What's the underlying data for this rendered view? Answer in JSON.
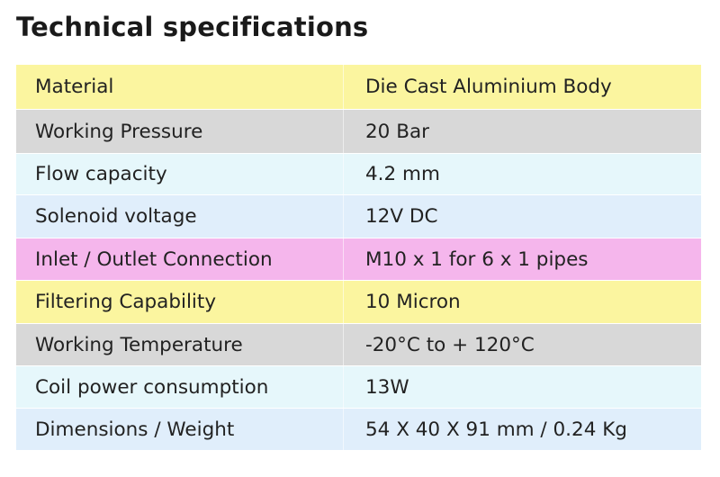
{
  "title": "Technical specifications",
  "colors": {
    "yellow": "#fbf59f",
    "gray": "#d8d8d8",
    "light_blue": "#e6f7fb",
    "pale_blue": "#e0eefb",
    "pink": "#f5b6ec"
  },
  "specs": [
    {
      "label": "Material",
      "value": "Die Cast Aluminium Body",
      "color": "#fbf59f"
    },
    {
      "label": "Working  Pressure",
      "value": "20 Bar",
      "color": "#d8d8d8"
    },
    {
      "label": "Flow capacity",
      "value": "4.2 mm",
      "color": "#e6f7fb"
    },
    {
      "label": "Solenoid voltage",
      "value": "12V DC",
      "color": "#e0eefb"
    },
    {
      "label": "Inlet / Outlet Connection",
      "value": "M10 x 1 for 6 x 1 pipes",
      "color": "#f5b6ec"
    },
    {
      "label": "Filtering Capability",
      "value": "10 Micron",
      "color": "#fbf59f"
    },
    {
      "label": "Working Temperature",
      "value": "-20°C to + 120°C",
      "color": "#d8d8d8"
    },
    {
      "label": "Coil power consumption",
      "value": "13W",
      "color": "#e6f7fb"
    },
    {
      "label": "Dimensions / Weight",
      "value": "54  X 40 X 91 mm / 0.24 Kg",
      "color": "#e0eefb"
    }
  ]
}
